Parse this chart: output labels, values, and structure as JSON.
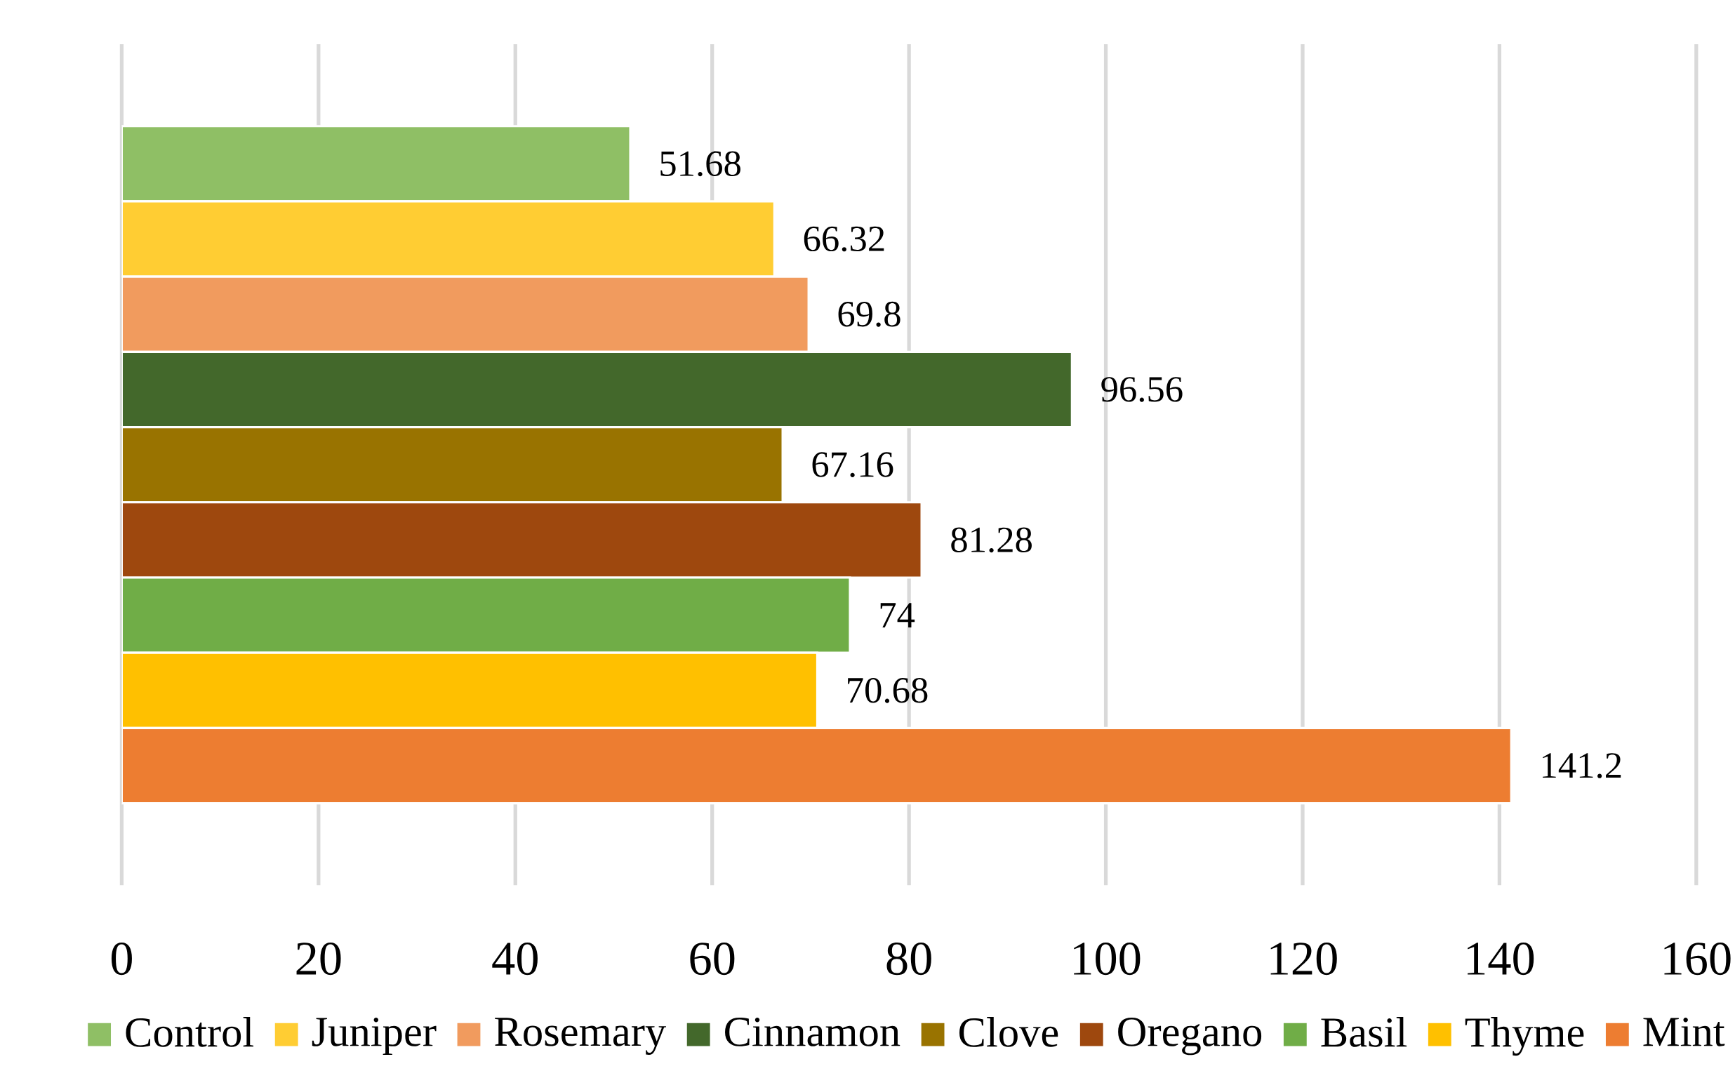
{
  "chart_data": {
    "type": "bar",
    "orientation": "horizontal",
    "categories": [
      null
    ],
    "series": [
      {
        "name": "Control",
        "color": "#8fbf65",
        "values": [
          51.68
        ]
      },
      {
        "name": "Juniper",
        "color": "#ffcd33",
        "values": [
          66.32
        ]
      },
      {
        "name": "Rosemary",
        "color": "#f19b5e",
        "values": [
          69.8
        ]
      },
      {
        "name": "Cinnamon",
        "color": "#43682b",
        "values": [
          96.56
        ]
      },
      {
        "name": "Clove",
        "color": "#997300",
        "values": [
          67.16
        ]
      },
      {
        "name": "Oregano",
        "color": "#9e480e",
        "values": [
          81.28
        ]
      },
      {
        "name": "Basil",
        "color": "#70ad47",
        "values": [
          74
        ]
      },
      {
        "name": "Thyme",
        "color": "#ffc000",
        "values": [
          70.68
        ]
      },
      {
        "name": "Mint",
        "color": "#ed7d31",
        "values": [
          141.2
        ]
      }
    ],
    "xlim": [
      0,
      160
    ],
    "xticks": [
      0,
      20,
      40,
      60,
      80,
      100,
      120,
      140,
      160
    ],
    "grid": "x",
    "legend": "bottom",
    "data_labels": true
  }
}
